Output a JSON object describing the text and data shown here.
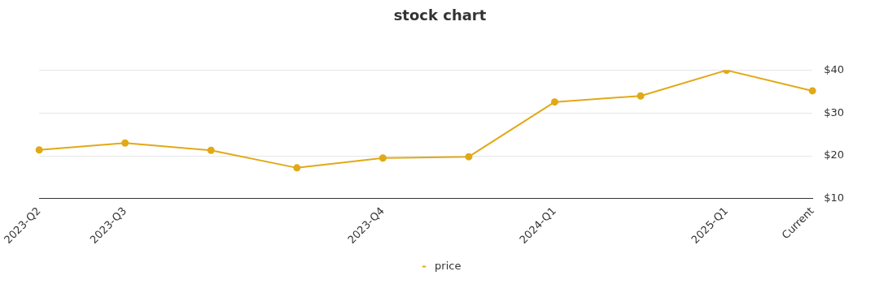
{
  "chart_data": {
    "type": "line",
    "title": "stock chart",
    "categories": [
      "2023-Q2",
      "2023-Q3",
      null,
      null,
      "2023-Q4",
      null,
      "2024-Q1",
      null,
      "2025-Q1",
      "Current"
    ],
    "series": [
      {
        "name": "price",
        "color": "#e2a917",
        "values": [
          21.4,
          23.0,
          21.3,
          17.2,
          19.5,
          19.8,
          32.6,
          34.0,
          40.0,
          35.2
        ]
      }
    ],
    "ylim": [
      10,
      40
    ],
    "yticks": [
      {
        "value": 10,
        "label": "$10"
      },
      {
        "value": 20,
        "label": "$20"
      },
      {
        "value": 30,
        "label": "$30"
      },
      {
        "value": 40,
        "label": "$40"
      }
    ],
    "grid": "y",
    "legend": "bottom",
    "marker": "circle",
    "line_style": "solid"
  }
}
